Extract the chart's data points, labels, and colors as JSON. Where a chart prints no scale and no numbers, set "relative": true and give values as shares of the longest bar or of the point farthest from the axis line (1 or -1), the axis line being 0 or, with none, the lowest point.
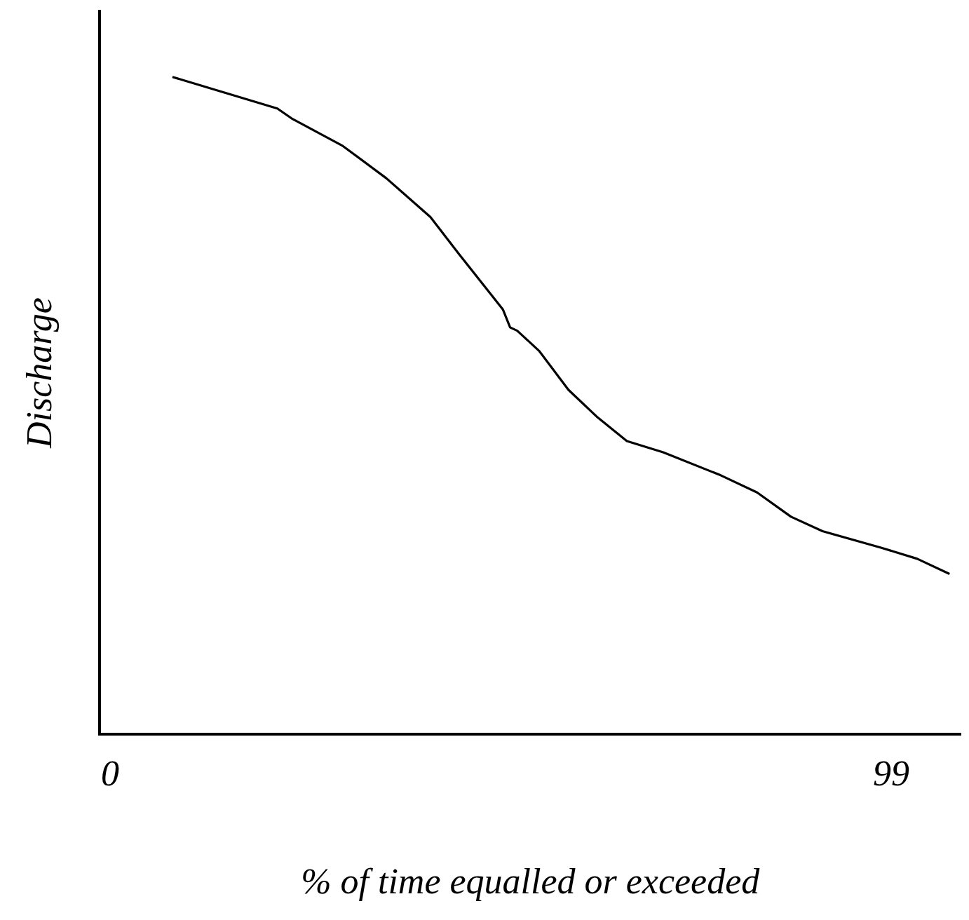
{
  "chart_data": {
    "type": "line",
    "xlabel": "% of time equalled or exceeded",
    "ylabel": "Discharge",
    "relative": true,
    "xlim": [
      -1.3,
      107.8
    ],
    "xticks": [
      0,
      99
    ],
    "grid": false,
    "legend": false,
    "marker": "none",
    "line_style": "solid",
    "series": [
      {
        "color": "#000000",
        "x": [
          7.9,
          21.2,
          23.0,
          29.5,
          35.0,
          40.6,
          44.2,
          49.8,
          50.7,
          51.6,
          54.4,
          58.1,
          61.8,
          65.5,
          70.1,
          77.4,
          82.0,
          86.3,
          90.3,
          97.7,
          102.3,
          106.4
        ],
        "values": [
          1,
          0.952,
          0.937,
          0.895,
          0.846,
          0.787,
          0.731,
          0.646,
          0.619,
          0.614,
          0.583,
          0.524,
          0.482,
          0.446,
          0.429,
          0.394,
          0.368,
          0.331,
          0.309,
          0.284,
          0.267,
          0.244
        ]
      }
    ]
  }
}
